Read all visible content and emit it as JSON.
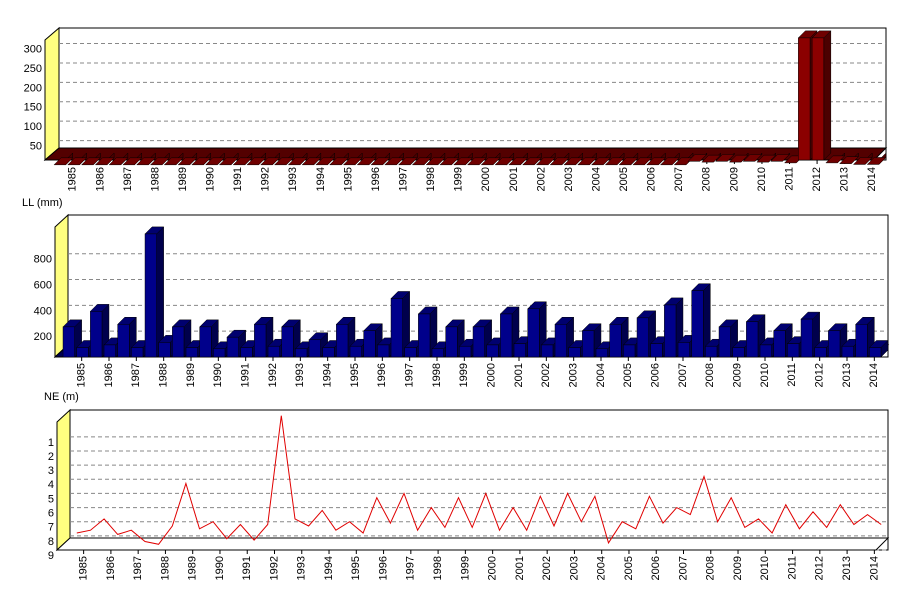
{
  "chart_data": [
    {
      "type": "bar",
      "color": "#8b0000",
      "grid": true,
      "xlim": [
        1984.5,
        2014.5
      ],
      "ylim": [
        0,
        340
      ],
      "yticks": [
        50,
        100,
        150,
        200,
        250,
        300
      ],
      "xticks": [
        1985,
        1986,
        1987,
        1988,
        1989,
        1990,
        1991,
        1992,
        1993,
        1994,
        1995,
        1996,
        1997,
        1998,
        1999,
        2000,
        2001,
        2002,
        2003,
        2004,
        2005,
        2006,
        2007,
        2008,
        2009,
        2010,
        2011,
        2012,
        2013,
        2014
      ],
      "x": [
        1984.75,
        1985.25,
        1985.75,
        1986.25,
        1986.75,
        1987.25,
        1987.75,
        1988.25,
        1988.75,
        1989.25,
        1989.75,
        1990.25,
        1990.75,
        1991.25,
        1991.75,
        1992.25,
        1992.75,
        1993.25,
        1993.75,
        1994.25,
        1994.75,
        1995.25,
        1995.75,
        1996.25,
        1996.75,
        1997.25,
        1997.75,
        1998.25,
        1998.75,
        1999.25,
        1999.75,
        2000.25,
        2000.75,
        2001.25,
        2001.75,
        2002.25,
        2002.75,
        2003.25,
        2003.75,
        2004.25,
        2004.75,
        2005.25,
        2005.75,
        2006.25,
        2006.75,
        2007.25,
        2007.75,
        2008.25,
        2008.75,
        2009.25,
        2009.75,
        2010.25,
        2010.75,
        2011.25,
        2011.75,
        2012.25,
        2012.75,
        2013.25,
        2013.75,
        2014.25
      ],
      "values": [
        3,
        3,
        3,
        3,
        3,
        3,
        3,
        3,
        3,
        3,
        3,
        3,
        3,
        3,
        3,
        3,
        3,
        3,
        3,
        3,
        3,
        3,
        3,
        3,
        3,
        3,
        3,
        3,
        3,
        3,
        3,
        3,
        3,
        3,
        3,
        3,
        3,
        3,
        3,
        3,
        3,
        3,
        3,
        3,
        3,
        3,
        12,
        10,
        12,
        10,
        12,
        10,
        12,
        8,
        330,
        330,
        8,
        6,
        4,
        4
      ]
    },
    {
      "type": "bar",
      "title": "LL (mm)",
      "color": "#00008b",
      "grid": true,
      "xlim": [
        1984.5,
        2014.5
      ],
      "ylim": [
        0,
        1100
      ],
      "yticks": [
        200,
        400,
        600,
        800
      ],
      "xticks": [
        1985,
        1986,
        1987,
        1988,
        1989,
        1990,
        1991,
        1992,
        1993,
        1994,
        1995,
        1996,
        1997,
        1998,
        1999,
        2000,
        2001,
        2002,
        2003,
        2004,
        2005,
        2006,
        2007,
        2008,
        2009,
        2010,
        2011,
        2012,
        2013,
        2014
      ],
      "x": [
        1984.75,
        1985.25,
        1985.75,
        1986.25,
        1986.75,
        1987.25,
        1987.75,
        1988.25,
        1988.75,
        1989.25,
        1989.75,
        1990.25,
        1990.75,
        1991.25,
        1991.75,
        1992.25,
        1992.75,
        1993.25,
        1993.75,
        1994.25,
        1994.75,
        1995.25,
        1995.75,
        1996.25,
        1996.75,
        1997.25,
        1997.75,
        1998.25,
        1998.75,
        1999.25,
        1999.75,
        2000.25,
        2000.75,
        2001.25,
        2001.75,
        2002.25,
        2002.75,
        2003.25,
        2003.75,
        2004.25,
        2004.75,
        2005.25,
        2005.75,
        2006.25,
        2006.75,
        2007.25,
        2007.75,
        2008.25,
        2008.75,
        2009.25,
        2009.75,
        2010.25,
        2010.75,
        2011.25,
        2011.75,
        2012.25,
        2012.75,
        2013.25,
        2013.75,
        2014.25
      ],
      "values": [
        280,
        120,
        400,
        140,
        300,
        120,
        1000,
        160,
        280,
        120,
        280,
        110,
        200,
        120,
        300,
        130,
        280,
        110,
        180,
        120,
        300,
        130,
        250,
        140,
        500,
        120,
        380,
        110,
        280,
        130,
        280,
        140,
        380,
        150,
        420,
        140,
        300,
        120,
        250,
        110,
        300,
        140,
        350,
        150,
        450,
        160,
        560,
        130,
        280,
        120,
        320,
        140,
        250,
        150,
        340,
        120,
        250,
        130,
        300,
        120
      ]
    },
    {
      "type": "line",
      "title": "NE (m)",
      "color": "#e00000",
      "grid": true,
      "xlim": [
        1984.5,
        2014.5
      ],
      "ylim": [
        9,
        -0.9
      ],
      "yticks": [
        1,
        2,
        3,
        4,
        5,
        6,
        7,
        8,
        9
      ],
      "xticks": [
        1985,
        1986,
        1987,
        1988,
        1989,
        1990,
        1991,
        1992,
        1993,
        1994,
        1995,
        1996,
        1997,
        1998,
        1999,
        2000,
        2001,
        2002,
        2003,
        2004,
        2005,
        2006,
        2007,
        2008,
        2009,
        2010,
        2011,
        2012,
        2013,
        2014
      ],
      "x": [
        1984.75,
        1985.25,
        1985.75,
        1986.25,
        1986.75,
        1987.25,
        1987.75,
        1988.25,
        1988.75,
        1989.25,
        1989.75,
        1990.25,
        1990.75,
        1991.25,
        1991.75,
        1992.25,
        1992.75,
        1993.25,
        1993.75,
        1994.25,
        1994.75,
        1995.25,
        1995.75,
        1996.25,
        1996.75,
        1997.25,
        1997.75,
        1998.25,
        1998.75,
        1999.25,
        1999.75,
        2000.25,
        2000.75,
        2001.25,
        2001.75,
        2002.25,
        2002.75,
        2003.25,
        2003.75,
        2004.25,
        2004.75,
        2005.25,
        2005.75,
        2006.25,
        2006.75,
        2007.25,
        2007.75,
        2008.25,
        2008.75,
        2009.25,
        2009.75,
        2010.25,
        2010.75,
        2011.25,
        2011.75,
        2012.25,
        2012.75,
        2013.25,
        2013.75,
        2014.25
      ],
      "values": [
        7.8,
        7.6,
        6.8,
        7.9,
        7.6,
        8.4,
        8.6,
        7.3,
        4.3,
        7.5,
        7.0,
        8.2,
        7.2,
        8.3,
        7.2,
        -0.5,
        6.8,
        7.3,
        6.2,
        7.6,
        7.0,
        7.8,
        5.3,
        7.1,
        5.0,
        7.6,
        6.0,
        7.4,
        5.3,
        7.4,
        5.0,
        7.6,
        6.0,
        7.6,
        5.2,
        7.3,
        5.0,
        7.0,
        5.2,
        8.5,
        7.0,
        7.5,
        5.2,
        7.1,
        6.0,
        6.5,
        3.8,
        7.0,
        5.3,
        7.4,
        6.8,
        7.8,
        5.8,
        7.5,
        6.3,
        7.4,
        5.8,
        7.2,
        6.5,
        7.2
      ]
    }
  ]
}
